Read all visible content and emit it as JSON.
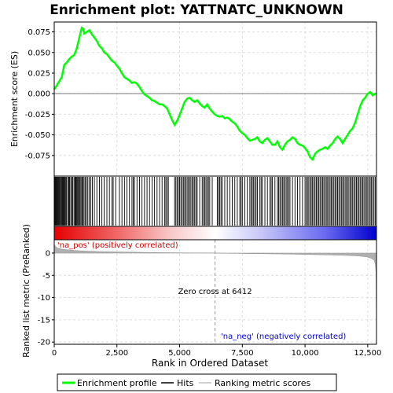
{
  "chart_data": {
    "type": "line",
    "title": "Enrichment plot: YATTNATC_UNKNOWN",
    "panels": {
      "enrichment": {
        "ylabel": "Enrichment score (ES)",
        "ylim": [
          -0.1,
          0.087
        ],
        "yticks": [
          -0.075,
          -0.05,
          -0.025,
          0.0,
          0.025,
          0.05,
          0.075
        ],
        "ytick_labels": [
          "-0.075",
          "-0.050",
          "-0.025",
          "0.000",
          "0.025",
          "0.050",
          "0.075"
        ],
        "series": [
          {
            "name": "Enrichment profile",
            "color": "#00ff00",
            "x": [
              0,
              100,
              200,
              300,
              400,
              500,
              600,
              700,
              800,
              900,
              1000,
              1100,
              1150,
              1200,
              1300,
              1400,
              1500,
              1600,
              1700,
              1800,
              1900,
              2000,
              2100,
              2200,
              2300,
              2400,
              2500,
              2600,
              2700,
              2800,
              2900,
              3000,
              3100,
              3200,
              3300,
              3400,
              3500,
              3600,
              3700,
              3800,
              3900,
              4000,
              4100,
              4200,
              4300,
              4400,
              4500,
              4600,
              4700,
              4800,
              4900,
              5000,
              5100,
              5200,
              5300,
              5400,
              5500,
              5600,
              5700,
              5800,
              5900,
              6000,
              6100,
              6200,
              6300,
              6400,
              6500,
              6600,
              6700,
              6800,
              6900,
              7000,
              7100,
              7200,
              7300,
              7400,
              7500,
              7600,
              7700,
              7800,
              7900,
              8000,
              8100,
              8200,
              8300,
              8400,
              8500,
              8600,
              8700,
              8800,
              8900,
              9000,
              9100,
              9200,
              9300,
              9400,
              9500,
              9600,
              9700,
              9800,
              9900,
              10000,
              10100,
              10200,
              10300,
              10400,
              10500,
              10600,
              10700,
              10800,
              10900,
              11000,
              11100,
              11200,
              11300,
              11400,
              11500,
              11600,
              11700,
              11800,
              11900,
              12000,
              12100,
              12200,
              12300,
              12400,
              12500,
              12600,
              12700,
              12800,
              12850
            ],
            "y": [
              0.005,
              0.01,
              0.015,
              0.02,
              0.035,
              0.038,
              0.042,
              0.045,
              0.047,
              0.055,
              0.068,
              0.08,
              0.079,
              0.073,
              0.075,
              0.077,
              0.072,
              0.068,
              0.064,
              0.058,
              0.055,
              0.05,
              0.048,
              0.044,
              0.04,
              0.038,
              0.034,
              0.03,
              0.025,
              0.02,
              0.018,
              0.016,
              0.013,
              0.014,
              0.012,
              0.008,
              0.003,
              -0.001,
              -0.003,
              -0.005,
              -0.008,
              -0.009,
              -0.011,
              -0.013,
              -0.013,
              -0.015,
              -0.018,
              -0.025,
              -0.032,
              -0.038,
              -0.033,
              -0.026,
              -0.018,
              -0.01,
              -0.006,
              -0.005,
              -0.008,
              -0.01,
              -0.008,
              -0.012,
              -0.015,
              -0.017,
              -0.013,
              -0.018,
              -0.022,
              -0.025,
              -0.027,
              -0.028,
              -0.027,
              -0.03,
              -0.029,
              -0.031,
              -0.034,
              -0.036,
              -0.04,
              -0.045,
              -0.048,
              -0.05,
              -0.054,
              -0.057,
              -0.056,
              -0.055,
              -0.053,
              -0.058,
              -0.06,
              -0.056,
              -0.054,
              -0.058,
              -0.062,
              -0.062,
              -0.058,
              -0.065,
              -0.068,
              -0.062,
              -0.058,
              -0.056,
              -0.053,
              -0.055,
              -0.06,
              -0.062,
              -0.063,
              -0.066,
              -0.07,
              -0.077,
              -0.08,
              -0.073,
              -0.07,
              -0.068,
              -0.067,
              -0.065,
              -0.067,
              -0.063,
              -0.06,
              -0.055,
              -0.052,
              -0.055,
              -0.06,
              -0.055,
              -0.05,
              -0.045,
              -0.042,
              -0.035,
              -0.025,
              -0.015,
              -0.008,
              -0.005,
              0.0,
              0.002,
              -0.002,
              0.0,
              0.0
            ]
          }
        ]
      },
      "ranked_metric": {
        "ylabel": "Ranked list metric (PreRanked)",
        "ylim": [
          -20.5,
          3
        ],
        "yticks": [
          0,
          -5,
          -10,
          -15,
          -20
        ],
        "ytick_labels": [
          "0",
          "-5",
          "-10",
          "-15",
          "-20"
        ],
        "series": [
          {
            "name": "Ranking metric scores",
            "color": "#c0c0c0",
            "x": [
              0,
              50,
              150,
              300,
              500,
              800,
              1200,
              2000,
              3000,
              4000,
              5000,
              6000,
              6412,
              7000,
              8000,
              9000,
              10000,
              11000,
              11500,
              12000,
              12300,
              12500,
              12650,
              12750,
              12800,
              12830,
              12850
            ],
            "y": [
              2.0,
              1.5,
              1.1,
              0.9,
              0.75,
              0.6,
              0.45,
              0.3,
              0.2,
              0.12,
              0.07,
              0.03,
              0.0,
              -0.05,
              -0.12,
              -0.2,
              -0.3,
              -0.42,
              -0.5,
              -0.6,
              -0.75,
              -0.9,
              -1.2,
              -1.6,
              -2.3,
              -4.5,
              -19.5
            ]
          }
        ],
        "annotations": {
          "zero_cross_label": "Zero cross at 6412",
          "zero_cross_x": 6412,
          "pos_label": "'na_pos' (positively correlated)",
          "neg_label": "'na_neg' (negatively correlated)"
        }
      }
    },
    "hits": [
      30,
      55,
      80,
      110,
      140,
      170,
      200,
      230,
      260,
      300,
      330,
      360,
      390,
      420,
      460,
      490,
      540,
      580,
      610,
      660,
      700,
      740,
      790,
      830,
      860,
      890,
      930,
      960,
      1000,
      1030,
      1070,
      1110,
      1150,
      1190,
      1240,
      1290,
      1340,
      1400,
      1460,
      1520,
      1600,
      1700,
      1800,
      1900,
      1990,
      2100,
      2200,
      2300,
      2350,
      2450,
      2600,
      2700,
      2800,
      2900,
      3000,
      3100,
      3150,
      3200,
      3300,
      3400,
      3500,
      3600,
      3700,
      3800,
      3900,
      4000,
      4100,
      4200,
      4300,
      4400,
      4450,
      4500,
      4550,
      4800,
      4850,
      4900,
      4950,
      5000,
      5050,
      5100,
      5150,
      5200,
      5250,
      5300,
      5350,
      5400,
      5450,
      5500,
      5550,
      5600,
      5650,
      5700,
      5800,
      5900,
      5950,
      6000,
      6050,
      6100,
      6150,
      6200,
      6300,
      6500,
      6550,
      6600,
      6650,
      6700,
      6800,
      6900,
      7000,
      7100,
      7200,
      7300,
      7400,
      7450,
      7500,
      7600,
      7700,
      7800,
      7850,
      7900,
      7950,
      8000,
      8050,
      8100,
      8200,
      8250,
      8300,
      8400,
      8500,
      8600,
      8650,
      8700,
      8800,
      8900,
      8950,
      9000,
      9050,
      9100,
      9150,
      9200,
      9250,
      9300,
      9350,
      9400,
      9500,
      9600,
      9700,
      9800,
      9900,
      10000,
      10050,
      10100,
      10150,
      10200,
      10250,
      10300,
      10350,
      10400,
      10450,
      10500,
      10550,
      10600,
      10650,
      10700,
      10750,
      10800,
      10850,
      10900,
      10950,
      11000,
      11050,
      11100,
      11150,
      11200,
      11250,
      11300,
      11350,
      11400,
      11450,
      11500,
      11550,
      11600,
      11650,
      11700,
      11750,
      11800,
      11850,
      11900,
      11950,
      12000,
      12050,
      12100,
      12150,
      12200,
      12250,
      12300,
      12350,
      12400,
      12450,
      12500,
      12550,
      12600,
      12650,
      12700,
      12750,
      12800
    ],
    "xlabel": "Rank in Ordered Dataset",
    "xlim": [
      0,
      12850
    ],
    "xticks": [
      0,
      2500,
      5000,
      7500,
      10000,
      12500
    ],
    "xtick_labels": [
      "0",
      "2,500",
      "5,000",
      "7,500",
      "10,000",
      "12,500"
    ],
    "legend": {
      "placement": "bottom",
      "entries": [
        {
          "label": "Enrichment profile",
          "color": "#00ff00"
        },
        {
          "label": "Hits",
          "color": "#000000"
        },
        {
          "label": "Ranking metric scores",
          "color": "#c0c0c0"
        }
      ]
    },
    "grid": true
  }
}
